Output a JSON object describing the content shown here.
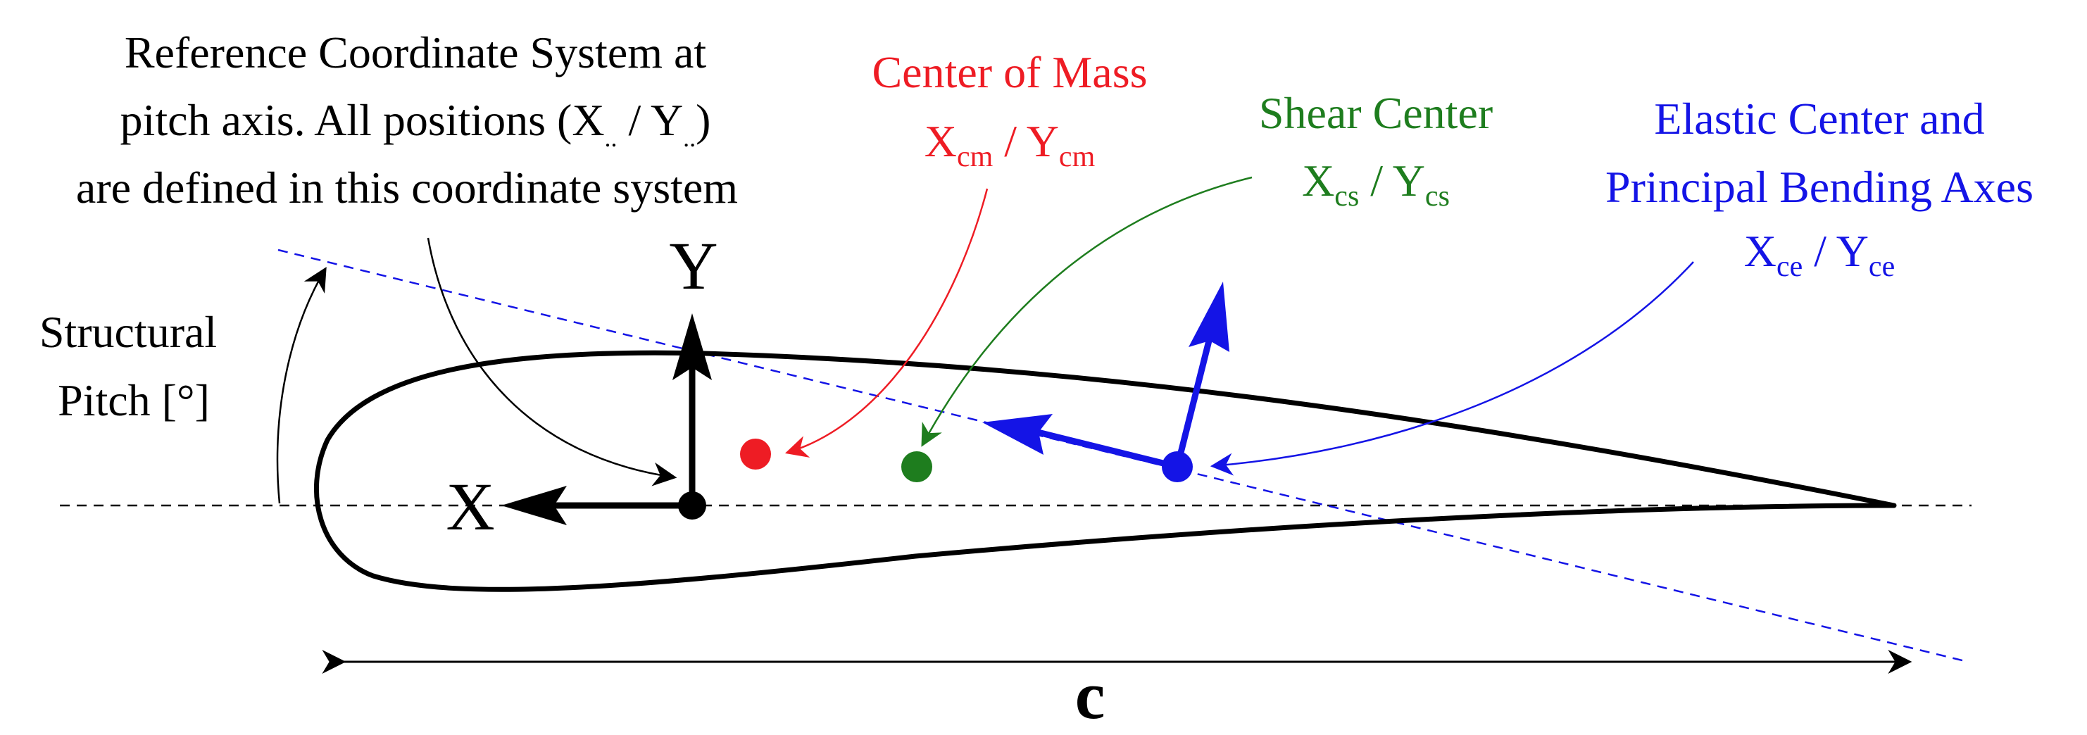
{
  "colors": {
    "black": "#000000",
    "center_of_mass": "#ee1c24",
    "shear_center": "#1e7d1e",
    "elastic_center": "#1414e6"
  },
  "reference": {
    "line1": "Reference Coordinate System at",
    "line2_a": "pitch axis. All positions (X",
    "line2_sub1": "..",
    "line2_mid": " / Y",
    "line2_sub2": "..",
    "line2_b": ")",
    "line3": "are defined in this coordinate system"
  },
  "center_of_mass": {
    "title": "Center of Mass",
    "x": "X",
    "x_sub": "cm",
    "sep": " / ",
    "y": "Y",
    "y_sub": "cm"
  },
  "shear_center": {
    "title": "Shear Center",
    "x": "X",
    "x_sub": "cs",
    "sep": " / ",
    "y": "Y",
    "y_sub": "cs"
  },
  "elastic_center": {
    "title_line1": "Elastic Center and",
    "title_line2": "Principal Bending Axes",
    "x": "X",
    "x_sub": "ce",
    "sep": " / ",
    "y": "Y",
    "y_sub": "ce"
  },
  "structural_pitch": {
    "line1": "Structural",
    "line2": "Pitch [°]"
  },
  "axes": {
    "x_label": "X",
    "y_label": "Y"
  },
  "chord_label": "c"
}
